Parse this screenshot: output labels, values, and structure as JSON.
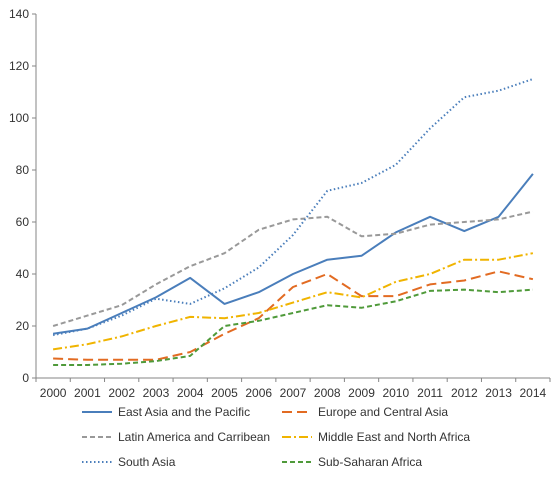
{
  "chart_data": {
    "type": "line",
    "title": "",
    "xlabel": "",
    "ylabel": "",
    "categories": [
      "2000",
      "2001",
      "2002",
      "2003",
      "2004",
      "2005",
      "2006",
      "2007",
      "2008",
      "2009",
      "2010",
      "2011",
      "2012",
      "2013",
      "2014"
    ],
    "ylim": [
      0,
      140
    ],
    "yticks": [
      "0",
      "20",
      "40",
      "60",
      "80",
      "100",
      "120",
      "140"
    ],
    "grid": false,
    "legend_position": "bottom",
    "series": [
      {
        "name": "East Asia and the Pacific",
        "color": "#4a7ebb",
        "dash": "solid",
        "values": [
          17,
          19,
          25,
          31,
          38.5,
          28.5,
          33,
          40,
          45.5,
          47,
          56,
          62,
          56.5,
          62,
          78.5
        ]
      },
      {
        "name": "Europe and Central Asia",
        "color": "#e26b22",
        "dash": "longdash",
        "values": [
          7.5,
          7,
          7,
          7,
          10,
          17,
          23,
          35,
          40,
          31.5,
          31.5,
          36,
          37.5,
          41,
          38
        ]
      },
      {
        "name": "Latin America and Carribean",
        "color": "#999999",
        "dash": "dash",
        "values": [
          20,
          24,
          28,
          36,
          43,
          48,
          57,
          61,
          62,
          54.5,
          55.5,
          59,
          60,
          61,
          64
        ]
      },
      {
        "name": "Middle East and North Africa",
        "color": "#f0b400",
        "dash": "dashdot",
        "values": [
          11,
          13,
          16,
          20,
          23.5,
          23,
          25,
          29,
          33,
          31,
          37,
          40,
          45.5,
          45.5,
          48
        ]
      },
      {
        "name": "South Asia",
        "color": "#4a7ebb",
        "dash": "dot",
        "values": [
          16.5,
          19,
          24,
          30.5,
          28.5,
          34.5,
          42.5,
          55,
          72,
          75,
          82,
          96,
          108,
          110.5,
          115
        ]
      },
      {
        "name": "Sub-Saharan Africa",
        "color": "#4f9a3a",
        "dash": "dash",
        "values": [
          5,
          5,
          5.5,
          6.5,
          8.5,
          20,
          22,
          25,
          28,
          27,
          29.5,
          33.5,
          34,
          33,
          34
        ]
      }
    ]
  }
}
